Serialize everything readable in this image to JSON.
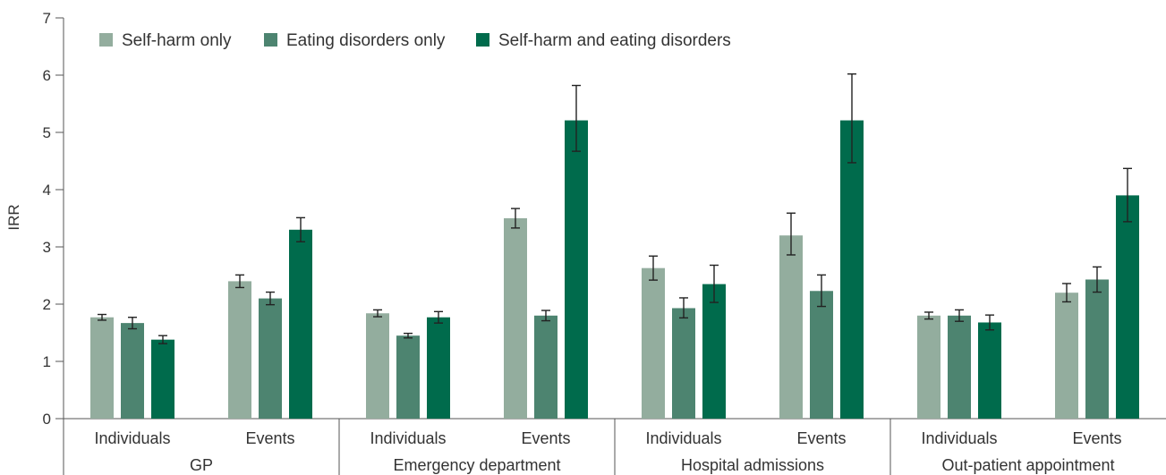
{
  "chart_data": {
    "type": "bar",
    "ylabel": "IRR",
    "ylim": [
      0,
      7
    ],
    "yticks": [
      0,
      1,
      2,
      3,
      4,
      5,
      6,
      7
    ],
    "grid": false,
    "legend_position": "top-left",
    "groups": [
      {
        "label": "GP",
        "subcategories": [
          "Individuals",
          "Events"
        ]
      },
      {
        "label": "Emergency department",
        "subcategories": [
          "Individuals",
          "Events"
        ]
      },
      {
        "label": "Hospital admissions",
        "subcategories": [
          "Individuals",
          "Events"
        ]
      },
      {
        "label": "Out-patient appointment",
        "subcategories": [
          "Individuals",
          "Events"
        ]
      }
    ],
    "series": [
      {
        "name": "Self-harm only",
        "color": "#93ad9e",
        "values": [
          1.77,
          2.4,
          1.84,
          3.5,
          2.63,
          3.2,
          1.8,
          2.2
        ],
        "lower": [
          1.72,
          2.29,
          1.78,
          3.33,
          2.42,
          2.86,
          1.74,
          2.04
        ],
        "upper": [
          1.82,
          2.51,
          1.9,
          3.67,
          2.84,
          3.59,
          1.86,
          2.36
        ]
      },
      {
        "name": "Eating disorders only",
        "color": "#4d8470",
        "values": [
          1.67,
          2.1,
          1.45,
          1.8,
          1.93,
          2.23,
          1.8,
          2.43
        ],
        "lower": [
          1.57,
          1.99,
          1.41,
          1.71,
          1.76,
          1.96,
          1.7,
          2.21
        ],
        "upper": [
          1.77,
          2.21,
          1.49,
          1.89,
          2.11,
          2.51,
          1.9,
          2.65
        ]
      },
      {
        "name": "Self-harm and eating disorders",
        "color": "#006b4c",
        "values": [
          1.38,
          3.3,
          1.77,
          5.21,
          2.35,
          5.21,
          1.68,
          3.9
        ],
        "lower": [
          1.31,
          3.09,
          1.67,
          4.67,
          2.03,
          4.47,
          1.55,
          3.44
        ],
        "upper": [
          1.45,
          3.51,
          1.87,
          5.82,
          2.68,
          6.02,
          1.81,
          4.37
        ]
      }
    ]
  }
}
